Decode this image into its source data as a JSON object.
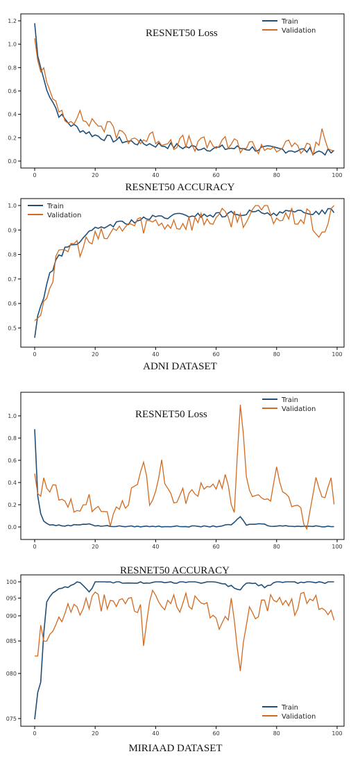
{
  "colors": {
    "train": "#1f4e79",
    "validation": "#d2691e"
  },
  "captions": {
    "resnet_accuracy_1": "RESNET50  ACCURACY",
    "adni": "ADNI DATASET",
    "resnet_accuracy_2": "RESNET50 ACCURACY",
    "miriaad": "MIRIAAD DATASET"
  },
  "chart_data": [
    {
      "type": "line",
      "title": "RESNET50 Loss",
      "legend": "top-right",
      "xlim": [
        0,
        100
      ],
      "ylim": [
        0,
        1.2
      ],
      "xticks": [
        "0",
        "20",
        "40",
        "60",
        "80",
        "100"
      ],
      "yticks": [
        "0.0",
        "0.2",
        "0.4",
        "0.6",
        "0.8",
        "1.0",
        "1.2"
      ],
      "series": [
        {
          "name": "Train",
          "keypoints": [
            [
              0,
              1.18
            ],
            [
              1,
              0.9
            ],
            [
              3,
              0.7
            ],
            [
              5,
              0.56
            ],
            [
              8,
              0.4
            ],
            [
              12,
              0.31
            ],
            [
              16,
              0.26
            ],
            [
              20,
              0.22
            ],
            [
              25,
              0.19
            ],
            [
              30,
              0.17
            ],
            [
              40,
              0.14
            ],
            [
              50,
              0.12
            ],
            [
              60,
              0.11
            ],
            [
              70,
              0.11
            ],
            [
              80,
              0.1
            ],
            [
              90,
              0.09
            ],
            [
              99,
              0.07
            ]
          ],
          "noise": 0.03
        },
        {
          "name": "Validation",
          "keypoints": [
            [
              0,
              1.05
            ],
            [
              1,
              0.86
            ],
            [
              3,
              0.76
            ],
            [
              5,
              0.55
            ],
            [
              8,
              0.48
            ],
            [
              10,
              0.38
            ],
            [
              14,
              0.38
            ],
            [
              18,
              0.34
            ],
            [
              22,
              0.31
            ],
            [
              28,
              0.24
            ],
            [
              35,
              0.18
            ],
            [
              40,
              0.2
            ],
            [
              45,
              0.17
            ],
            [
              55,
              0.14
            ],
            [
              65,
              0.14
            ],
            [
              75,
              0.12
            ],
            [
              85,
              0.12
            ],
            [
              94,
              0.1
            ],
            [
              95,
              0.3
            ],
            [
              97,
              0.1
            ],
            [
              99,
              0.08
            ]
          ],
          "noise": 0.07
        }
      ]
    },
    {
      "type": "line",
      "title": "",
      "legend": "top-left",
      "xlim": [
        0,
        100
      ],
      "ylim": [
        0.45,
        1.0
      ],
      "xticks": [
        "0",
        "20",
        "40",
        "60",
        "80",
        "100"
      ],
      "yticks": [
        "0.5",
        "0.6",
        "0.7",
        "0.8",
        "0.9",
        "1.0"
      ],
      "series": [
        {
          "name": "Train",
          "keypoints": [
            [
              0,
              0.46
            ],
            [
              1,
              0.55
            ],
            [
              3,
              0.63
            ],
            [
              5,
              0.72
            ],
            [
              7,
              0.77
            ],
            [
              10,
              0.82
            ],
            [
              15,
              0.86
            ],
            [
              20,
              0.9
            ],
            [
              25,
              0.92
            ],
            [
              30,
              0.93
            ],
            [
              40,
              0.95
            ],
            [
              50,
              0.96
            ],
            [
              60,
              0.96
            ],
            [
              70,
              0.97
            ],
            [
              80,
              0.97
            ],
            [
              90,
              0.97
            ],
            [
              99,
              0.98
            ]
          ],
          "noise": 0.012
        },
        {
          "name": "Validation",
          "keypoints": [
            [
              0,
              0.53
            ],
            [
              1,
              0.54
            ],
            [
              3,
              0.62
            ],
            [
              5,
              0.67
            ],
            [
              7,
              0.76
            ],
            [
              9,
              0.8
            ],
            [
              12,
              0.84
            ],
            [
              15,
              0.83
            ],
            [
              20,
              0.86
            ],
            [
              25,
              0.88
            ],
            [
              30,
              0.92
            ],
            [
              40,
              0.93
            ],
            [
              50,
              0.93
            ],
            [
              60,
              0.95
            ],
            [
              70,
              0.95
            ],
            [
              75,
              0.99
            ],
            [
              80,
              0.95
            ],
            [
              90,
              0.95
            ],
            [
              95,
              0.88
            ],
            [
              99,
              0.98
            ]
          ],
          "noise": 0.04
        }
      ]
    },
    {
      "type": "line",
      "title": "RESNET50 Loss",
      "legend": "top-right",
      "xlim": [
        0,
        100
      ],
      "ylim": [
        -0.05,
        1.15
      ],
      "xticks": [
        "0",
        "20",
        "40",
        "60",
        "80",
        "100"
      ],
      "yticks": [
        "0.0",
        "0.2",
        "0.4",
        "0.6",
        "0.8",
        "1.0"
      ],
      "series": [
        {
          "name": "Train",
          "keypoints": [
            [
              0,
              0.88
            ],
            [
              1,
              0.28
            ],
            [
              2,
              0.12
            ],
            [
              3,
              0.05
            ],
            [
              5,
              0.02
            ],
            [
              10,
              0.01
            ],
            [
              18,
              0.03
            ],
            [
              20,
              0.01
            ],
            [
              30,
              0.005
            ],
            [
              60,
              0.005
            ],
            [
              65,
              0.02
            ],
            [
              68,
              0.09
            ],
            [
              70,
              0.02
            ],
            [
              75,
              0.03
            ],
            [
              78,
              0.01
            ],
            [
              99,
              0.005
            ]
          ],
          "noise": 0.005
        },
        {
          "name": "Validation",
          "keypoints": [
            [
              0,
              0.48
            ],
            [
              1,
              0.3
            ],
            [
              3,
              0.37
            ],
            [
              5,
              0.25
            ],
            [
              7,
              0.42
            ],
            [
              8,
              0.18
            ],
            [
              10,
              0.17
            ],
            [
              14,
              0.2
            ],
            [
              18,
              0.24
            ],
            [
              22,
              0.14
            ],
            [
              25,
              0.05
            ],
            [
              30,
              0.2
            ],
            [
              36,
              0.58
            ],
            [
              38,
              0.2
            ],
            [
              42,
              0.55
            ],
            [
              45,
              0.25
            ],
            [
              50,
              0.28
            ],
            [
              55,
              0.35
            ],
            [
              60,
              0.3
            ],
            [
              63,
              0.45
            ],
            [
              66,
              0.08
            ],
            [
              68,
              1.12
            ],
            [
              70,
              0.5
            ],
            [
              72,
              0.25
            ],
            [
              75,
              0.32
            ],
            [
              78,
              0.22
            ],
            [
              80,
              0.5
            ],
            [
              84,
              0.2
            ],
            [
              88,
              0.15
            ],
            [
              90,
              0.05
            ],
            [
              93,
              0.45
            ],
            [
              95,
              0.2
            ],
            [
              98,
              0.48
            ],
            [
              99,
              0.28
            ]
          ],
          "noise": 0.08
        }
      ]
    },
    {
      "type": "line",
      "title": "",
      "legend": "bottom-right",
      "xlim": [
        0,
        100
      ],
      "ylim": [
        0.07,
        1.0
      ],
      "xticks": [
        "0",
        "20",
        "40",
        "60",
        "80",
        "100"
      ],
      "yticks": [
        "075",
        "080",
        "085",
        "090",
        "095",
        "100"
      ],
      "series": [
        {
          "name": "Train",
          "keypoints": [
            [
              0,
              0.075
            ],
            [
              1,
              0.6
            ],
            [
              2,
              0.8
            ],
            [
              3,
              0.9
            ],
            [
              4,
              0.96
            ],
            [
              6,
              0.98
            ],
            [
              10,
              0.99
            ],
            [
              15,
              1.0
            ],
            [
              18,
              0.98
            ],
            [
              20,
              1.0
            ],
            [
              40,
              1.0
            ],
            [
              60,
              1.0
            ],
            [
              68,
              0.985
            ],
            [
              70,
              1.0
            ],
            [
              76,
              0.99
            ],
            [
              80,
              1.0
            ],
            [
              99,
              1.0
            ]
          ],
          "noise": 0.003
        },
        {
          "name": "Validation",
          "keypoints": [
            [
              0,
              0.85
            ],
            [
              1,
              0.85
            ],
            [
              2,
              0.93
            ],
            [
              3,
              0.88
            ],
            [
              5,
              0.9
            ],
            [
              8,
              0.92
            ],
            [
              10,
              0.95
            ],
            [
              15,
              0.95
            ],
            [
              20,
              0.97
            ],
            [
              25,
              0.95
            ],
            [
              30,
              0.97
            ],
            [
              35,
              0.94
            ],
            [
              36,
              0.89
            ],
            [
              38,
              0.97
            ],
            [
              45,
              0.96
            ],
            [
              50,
              0.96
            ],
            [
              55,
              0.95
            ],
            [
              58,
              0.94
            ],
            [
              60,
              0.91
            ],
            [
              65,
              0.95
            ],
            [
              68,
              0.84
            ],
            [
              70,
              0.93
            ],
            [
              75,
              0.95
            ],
            [
              80,
              0.98
            ],
            [
              85,
              0.95
            ],
            [
              90,
              0.97
            ],
            [
              95,
              0.96
            ],
            [
              98,
              0.94
            ],
            [
              99,
              0.935
            ]
          ],
          "noise": 0.02
        }
      ]
    }
  ]
}
